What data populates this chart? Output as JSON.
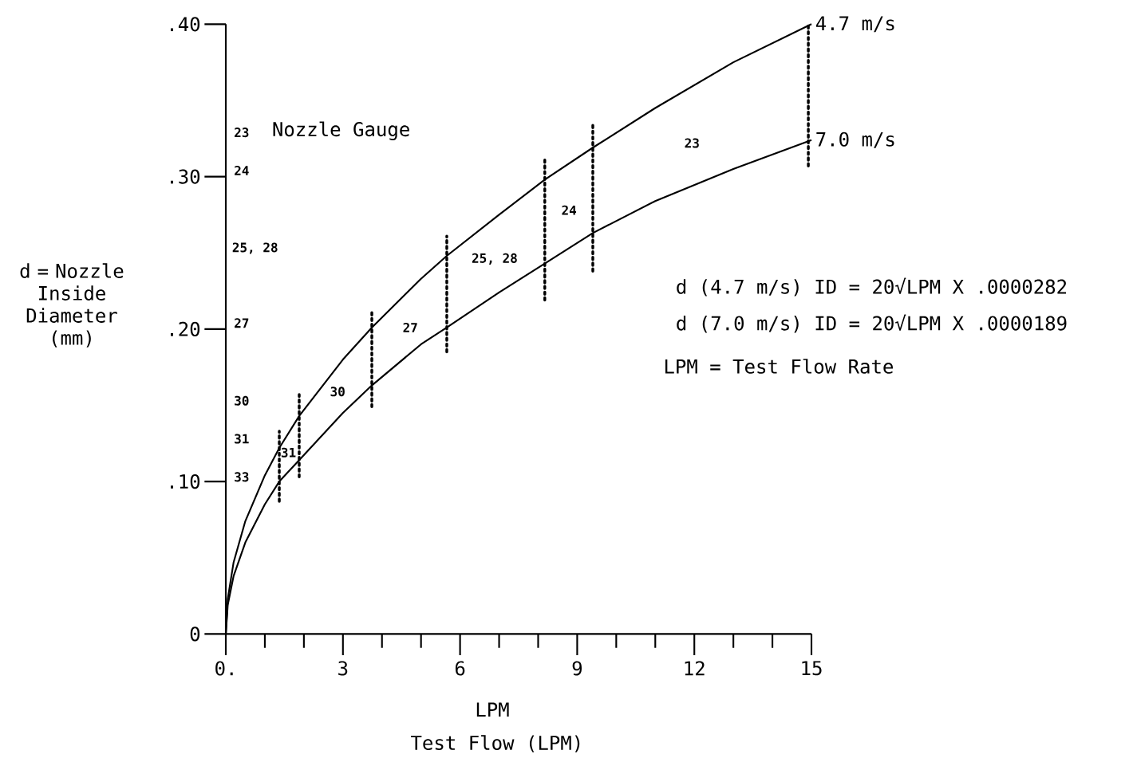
{
  "chart_data": {
    "type": "line",
    "xlabel": "LPM",
    "ylabel": "d = Nozzle Inside Diameter (mm)",
    "xlim": [
      0,
      15
    ],
    "ylim": [
      0,
      0.4
    ],
    "xticks": [
      {
        "value": 0,
        "label": "0."
      },
      3,
      6,
      9,
      12,
      15
    ],
    "yticks": [
      0,
      {
        "value": 0.1,
        "label": ".10"
      },
      {
        "value": 0.2,
        "label": ".20"
      },
      {
        "value": 0.3,
        "label": ".30"
      },
      {
        "value": 0.4,
        "label": ".40"
      }
    ],
    "series": [
      {
        "name": "4.7 m/s",
        "color": "#000000",
        "line_style": "solid",
        "x": [
          0,
          0.05,
          0.2,
          0.5,
          1,
          1.37,
          1.88,
          3,
          3.74,
          5,
          5.66,
          7,
          8.17,
          9.4,
          11,
          13,
          15
        ],
        "values": [
          0,
          0.023,
          0.047,
          0.074,
          0.104,
          0.122,
          0.143,
          0.18,
          0.201,
          0.233,
          0.248,
          0.275,
          0.298,
          0.319,
          0.345,
          0.375,
          0.4
        ]
      },
      {
        "name": "7.0 m/s",
        "color": "#000000",
        "line_style": "solid",
        "x": [
          0,
          0.05,
          0.2,
          0.5,
          1,
          1.37,
          1.88,
          3,
          3.74,
          5,
          5.66,
          7,
          8.17,
          9.4,
          11,
          13,
          15
        ],
        "values": [
          0,
          0.019,
          0.038,
          0.06,
          0.085,
          0.1,
          0.114,
          0.145,
          0.163,
          0.19,
          0.201,
          0.224,
          0.243,
          0.263,
          0.284,
          0.305,
          0.324
        ]
      },
      {
        "color": "#000000",
        "line_style": "dotted",
        "x": [
          1.37,
          1.37
        ],
        "values": [
          0.087,
          0.133
        ]
      },
      {
        "color": "#000000",
        "line_style": "dotted",
        "x": [
          1.88,
          1.88
        ],
        "values": [
          0.103,
          0.157
        ]
      },
      {
        "color": "#000000",
        "line_style": "dotted",
        "x": [
          3.74,
          3.74
        ],
        "values": [
          0.149,
          0.211
        ]
      },
      {
        "color": "#000000",
        "line_style": "dotted",
        "x": [
          5.66,
          5.66
        ],
        "values": [
          0.185,
          0.261
        ]
      },
      {
        "color": "#000000",
        "line_style": "dotted",
        "x": [
          8.17,
          8.17
        ],
        "values": [
          0.219,
          0.311
        ]
      },
      {
        "color": "#000000",
        "line_style": "dotted",
        "x": [
          9.4,
          9.4
        ],
        "values": [
          0.238,
          0.335
        ]
      },
      {
        "color": "#000000",
        "line_style": "dotted",
        "x": [
          14.92,
          14.92
        ],
        "values": [
          0.307,
          0.4
        ]
      }
    ],
    "annotations": [
      "d (4.7 m/s) ID = 20√LPM X .0000282",
      "d (7.0 m/s) ID = 20√LPM X .0000189",
      "LPM = Test Flow Rate",
      "Test Flow (LPM)",
      "Nozzle Gauge",
      "23",
      "24",
      "25, 28",
      "27",
      "30",
      "31",
      "33",
      "31",
      "30",
      "27",
      "25, 28",
      "24",
      "23"
    ]
  }
}
